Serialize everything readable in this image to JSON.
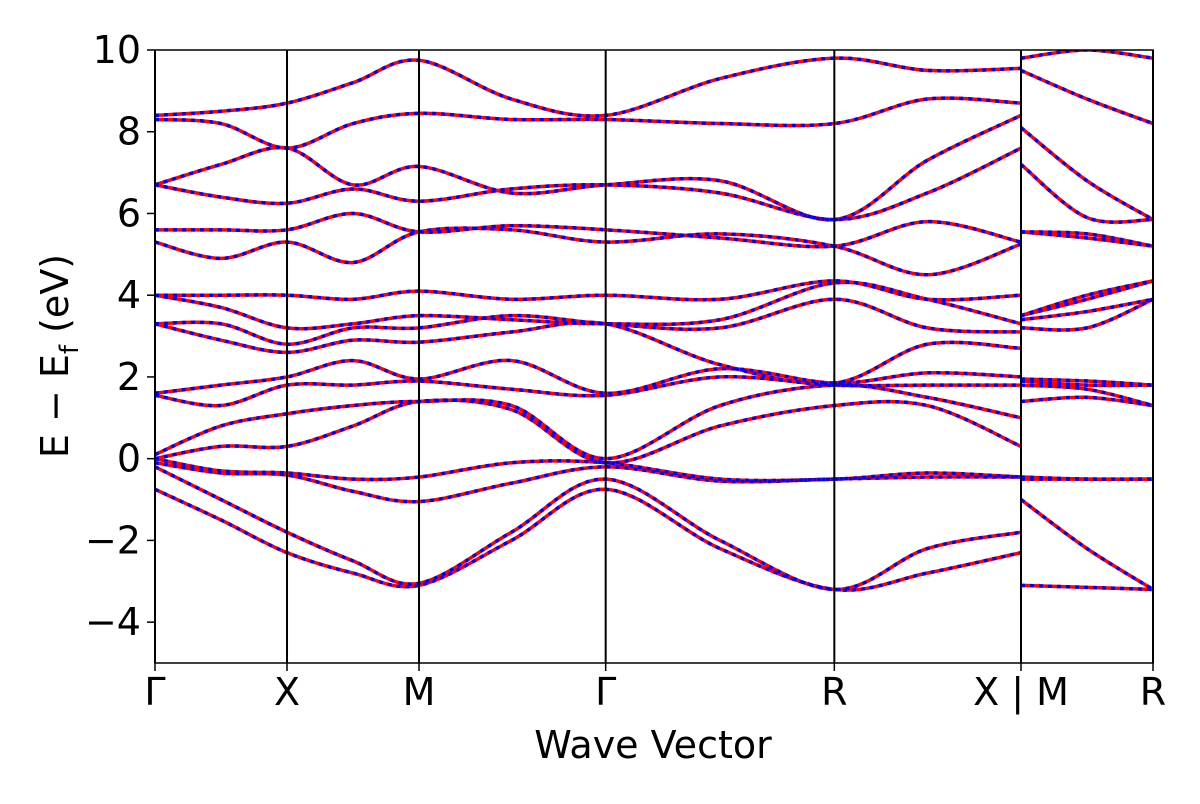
{
  "chart_data": {
    "type": "band-structure",
    "x_label": "Wave Vector",
    "y_label": [
      "E − E",
      "f",
      " (eV)"
    ],
    "xlim": [
      0,
      7.56
    ],
    "ylim": [
      -5,
      10
    ],
    "xticks": [
      {
        "value": 0,
        "label": "Γ"
      },
      {
        "value": 1,
        "label": "X"
      },
      {
        "value": 2,
        "label": "M"
      },
      {
        "value": 3.414,
        "label": "Γ"
      },
      {
        "value": 5.146,
        "label": "R"
      },
      {
        "value": 6.56,
        "label": "X | M"
      },
      {
        "value": 7.56,
        "label": "R"
      }
    ],
    "yticks": [
      {
        "value": -4,
        "label": "−4"
      },
      {
        "value": -2,
        "label": "−2"
      },
      0,
      2,
      4,
      6,
      8,
      10
    ],
    "x": [
      0,
      0.5,
      1,
      1.5,
      2,
      2.7,
      3.414,
      4.28,
      5.146,
      5.85,
      6.56,
      6.56,
      6.56,
      7.06,
      7.56
    ],
    "line_color": "#ff0000",
    "dash_color": "#0000ff",
    "series": [
      {
        "values": [
          -0.75,
          -1.5,
          -2.3,
          -2.8,
          -3.1,
          -2.0,
          -0.75,
          -2.2,
          -3.2,
          -2.8,
          -2.3,
          null,
          -3.1,
          -3.15,
          -3.2
        ]
      },
      {
        "values": [
          -0.2,
          -1.0,
          -1.8,
          -2.5,
          -3.05,
          -1.8,
          -0.5,
          -2.0,
          -3.2,
          -2.2,
          -1.8,
          null,
          -1.0,
          -2.2,
          -3.2
        ]
      },
      {
        "values": [
          -0.1,
          -0.35,
          -0.4,
          -0.8,
          -1.05,
          -0.6,
          -0.2,
          -0.55,
          -0.5,
          -0.45,
          -0.45,
          null,
          -0.5,
          -0.5,
          -0.5
        ]
      },
      {
        "values": [
          0,
          -0.3,
          -0.35,
          -0.5,
          -0.45,
          -0.1,
          -0.1,
          -0.5,
          -0.5,
          -0.35,
          -0.45,
          null,
          -0.45,
          -0.5,
          -0.5
        ]
      },
      {
        "values": [
          0.0,
          0.3,
          0.3,
          0.8,
          1.4,
          1.2,
          -0.1,
          0.8,
          1.3,
          1.3,
          0.3,
          null,
          1.4,
          1.5,
          1.3
        ]
      },
      {
        "values": [
          0.1,
          0.8,
          1.1,
          1.3,
          1.4,
          1.3,
          0.0,
          1.3,
          1.8,
          1.5,
          1.0,
          null,
          1.8,
          1.7,
          1.3
        ]
      },
      {
        "values": [
          1.55,
          1.3,
          1.8,
          1.8,
          1.9,
          1.7,
          1.55,
          2.0,
          1.8,
          1.8,
          1.8,
          null,
          1.9,
          1.8,
          1.8
        ]
      },
      {
        "values": [
          1.6,
          1.8,
          2.0,
          2.4,
          1.95,
          2.4,
          1.6,
          2.2,
          1.85,
          2.1,
          2.0,
          null,
          1.95,
          1.9,
          1.8
        ]
      },
      {
        "values": [
          3.3,
          2.9,
          2.6,
          2.9,
          2.85,
          3.1,
          3.3,
          2.3,
          1.85,
          2.8,
          2.7,
          null,
          3.2,
          3.2,
          3.9
        ]
      },
      {
        "values": [
          3.3,
          3.3,
          2.8,
          3.2,
          3.2,
          3.5,
          3.3,
          3.2,
          3.9,
          3.2,
          3.1,
          null,
          3.4,
          3.6,
          3.9
        ]
      },
      {
        "values": [
          4.0,
          3.7,
          3.2,
          3.3,
          3.5,
          3.4,
          3.3,
          3.4,
          4.3,
          3.9,
          3.3,
          null,
          3.5,
          3.9,
          4.35
        ]
      },
      {
        "values": [
          4.0,
          4.0,
          4.0,
          3.9,
          4.1,
          3.9,
          4.0,
          3.9,
          4.35,
          3.9,
          4.0,
          null,
          3.5,
          4.0,
          4.35
        ]
      },
      {
        "values": [
          5.3,
          4.9,
          5.3,
          4.8,
          5.55,
          5.6,
          5.3,
          5.5,
          5.2,
          4.5,
          5.25,
          null,
          5.55,
          5.4,
          5.2
        ]
      },
      {
        "values": [
          5.6,
          5.6,
          5.6,
          6.0,
          5.55,
          5.7,
          5.6,
          5.4,
          5.2,
          5.8,
          5.3,
          null,
          5.55,
          5.5,
          5.2
        ]
      },
      {
        "values": [
          6.7,
          6.4,
          6.25,
          6.6,
          6.3,
          6.6,
          6.7,
          6.5,
          5.85,
          6.5,
          7.6,
          null,
          7.2,
          5.9,
          5.85
        ]
      },
      {
        "values": [
          6.7,
          7.2,
          7.6,
          6.7,
          7.15,
          6.5,
          6.7,
          6.8,
          5.85,
          7.3,
          8.4,
          null,
          8.1,
          6.8,
          5.85
        ]
      },
      {
        "values": [
          8.3,
          8.2,
          7.6,
          8.2,
          8.45,
          8.3,
          8.3,
          8.2,
          8.2,
          8.8,
          8.7,
          null,
          9.5,
          8.8,
          8.2
        ]
      },
      {
        "values": [
          8.4,
          8.5,
          8.7,
          9.2,
          9.75,
          8.8,
          8.4,
          9.3,
          9.8,
          9.5,
          9.55,
          null,
          9.8,
          10.0,
          9.8
        ]
      }
    ]
  }
}
